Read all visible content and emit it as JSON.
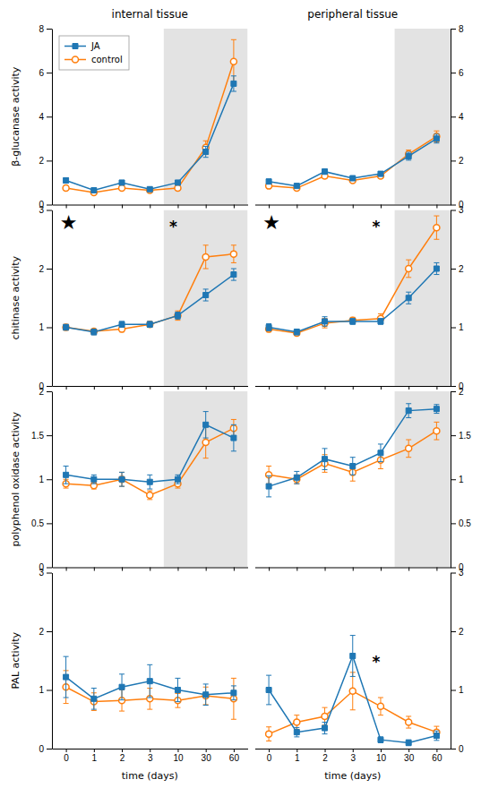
{
  "chart_data": [
    {
      "type": "line",
      "title": "internal tissue",
      "y_label": "β-glucanase activity",
      "categories": [
        "0",
        "1",
        "2",
        "3",
        "10",
        "30",
        "60"
      ],
      "series": [
        {
          "name": "JA",
          "marker": "square",
          "values": [
            1.1,
            0.65,
            1.0,
            0.7,
            1.0,
            2.4,
            5.5
          ],
          "errors": [
            0.12,
            0.08,
            0.1,
            0.06,
            0.1,
            0.25,
            0.35
          ]
        },
        {
          "name": "control",
          "marker": "circle",
          "values": [
            0.75,
            0.55,
            0.75,
            0.65,
            0.75,
            2.6,
            6.5
          ],
          "errors": [
            0.08,
            0.05,
            0.08,
            0.05,
            0.08,
            0.3,
            1.0
          ]
        }
      ],
      "ylim": [
        0,
        8
      ],
      "yticks": [
        0,
        2,
        4,
        6,
        8
      ],
      "shaded_range": {
        "from": "10",
        "to": "60",
        "color": "#c8c8c8"
      },
      "legend": "top-left",
      "tick_labels": "y"
    },
    {
      "type": "line",
      "title": "peripheral tissue",
      "categories": [
        "0",
        "1",
        "2",
        "3",
        "10",
        "30",
        "60"
      ],
      "series": [
        {
          "marker": "square",
          "values": [
            1.05,
            0.85,
            1.5,
            1.2,
            1.4,
            2.2,
            3.0
          ],
          "errors": [
            0.1,
            0.08,
            0.12,
            0.08,
            0.1,
            0.18,
            0.2
          ]
        },
        {
          "marker": "circle",
          "values": [
            0.85,
            0.75,
            1.3,
            1.1,
            1.3,
            2.3,
            3.1
          ],
          "errors": [
            0.08,
            0.05,
            0.1,
            0.08,
            0.1,
            0.18,
            0.25
          ]
        }
      ],
      "ylim": [
        0,
        8
      ],
      "yticks": [
        0,
        2,
        4,
        6,
        8
      ],
      "shaded_range": {
        "from": "30",
        "to": "60",
        "color": "#c8c8c8"
      },
      "tick_labels": "y"
    },
    {
      "type": "line",
      "y_label": "chitinase activity",
      "categories": [
        "0",
        "1",
        "2",
        "3",
        "10",
        "30",
        "60"
      ],
      "series": [
        {
          "marker": "square",
          "values": [
            1.0,
            0.92,
            1.05,
            1.05,
            1.2,
            1.55,
            1.9
          ],
          "errors": [
            0.05,
            0.05,
            0.05,
            0.05,
            0.06,
            0.1,
            0.1
          ]
        },
        {
          "marker": "circle",
          "values": [
            1.0,
            0.93,
            0.97,
            1.05,
            1.2,
            2.2,
            2.25
          ],
          "errors": [
            0.05,
            0.04,
            0.05,
            0.05,
            0.08,
            0.2,
            0.15
          ]
        }
      ],
      "ylim": [
        0,
        3
      ],
      "yticks": [
        0,
        1,
        2,
        3
      ],
      "shaded_range": {
        "from": "10",
        "to": "60",
        "color": "#c8c8c8"
      },
      "tick_labels": "y",
      "annotations": [
        "★",
        "*"
      ]
    },
    {
      "type": "line",
      "categories": [
        "0",
        "1",
        "2",
        "3",
        "10",
        "30",
        "60"
      ],
      "series": [
        {
          "marker": "square",
          "values": [
            1.0,
            0.92,
            1.1,
            1.1,
            1.1,
            1.5,
            2.0
          ],
          "errors": [
            0.06,
            0.05,
            0.08,
            0.05,
            0.05,
            0.1,
            0.1
          ]
        },
        {
          "marker": "circle",
          "values": [
            0.97,
            0.9,
            1.07,
            1.12,
            1.15,
            2.0,
            2.7
          ],
          "errors": [
            0.05,
            0.04,
            0.08,
            0.05,
            0.08,
            0.15,
            0.2
          ]
        }
      ],
      "ylim": [
        0,
        3
      ],
      "yticks": [
        0,
        1,
        2,
        3
      ],
      "shaded_range": {
        "from": "30",
        "to": "60",
        "color": "#c8c8c8"
      },
      "tick_labels": "y",
      "annotations": [
        "★",
        "*"
      ]
    },
    {
      "type": "line",
      "y_label": "polyphenol oxidase activity",
      "categories": [
        "0",
        "1",
        "2",
        "3",
        "10",
        "30",
        "60"
      ],
      "series": [
        {
          "marker": "square",
          "values": [
            1.05,
            1.0,
            1.0,
            0.97,
            1.0,
            1.62,
            1.47
          ],
          "errors": [
            0.1,
            0.05,
            0.08,
            0.08,
            0.05,
            0.15,
            0.15
          ]
        },
        {
          "marker": "circle",
          "values": [
            0.95,
            0.93,
            1.0,
            0.82,
            0.95,
            1.42,
            1.58
          ],
          "errors": [
            0.05,
            0.04,
            0.08,
            0.05,
            0.05,
            0.18,
            0.1
          ]
        }
      ],
      "ylim": [
        0,
        2
      ],
      "yticks": [
        0,
        0.5,
        1,
        1.5,
        2
      ],
      "shaded_range": {
        "from": "10",
        "to": "60",
        "color": "#c8c8c8"
      },
      "tick_labels": "y"
    },
    {
      "type": "line",
      "categories": [
        "0",
        "1",
        "2",
        "3",
        "10",
        "30",
        "60"
      ],
      "series": [
        {
          "marker": "square",
          "values": [
            0.92,
            1.02,
            1.23,
            1.15,
            1.3,
            1.78,
            1.8
          ],
          "errors": [
            0.12,
            0.07,
            0.12,
            0.1,
            0.1,
            0.08,
            0.05
          ]
        },
        {
          "marker": "circle",
          "values": [
            1.05,
            1.0,
            1.18,
            1.08,
            1.22,
            1.35,
            1.55
          ],
          "errors": [
            0.1,
            0.05,
            0.1,
            0.1,
            0.1,
            0.1,
            0.1
          ]
        }
      ],
      "ylim": [
        0,
        2
      ],
      "yticks": [
        0,
        0.5,
        1,
        1.5,
        2
      ],
      "shaded_range": {
        "from": "30",
        "to": "60",
        "color": "#c8c8c8"
      },
      "tick_labels": "y"
    },
    {
      "type": "line",
      "y_label": "PAL activity",
      "x_label": "time (days)",
      "categories": [
        "0",
        "1",
        "2",
        "3",
        "10",
        "30",
        "60"
      ],
      "series": [
        {
          "marker": "square",
          "values": [
            1.22,
            0.85,
            1.05,
            1.15,
            1.0,
            0.92,
            0.95
          ],
          "errors": [
            0.35,
            0.18,
            0.22,
            0.28,
            0.2,
            0.18,
            0.12
          ]
        },
        {
          "marker": "circle",
          "values": [
            1.05,
            0.8,
            0.82,
            0.85,
            0.82,
            0.9,
            0.85
          ],
          "errors": [
            0.28,
            0.15,
            0.18,
            0.18,
            0.12,
            0.15,
            0.35
          ]
        }
      ],
      "ylim": [
        0,
        3
      ],
      "yticks": [
        0,
        1,
        2,
        3
      ]
    },
    {
      "type": "line",
      "x_label": "time (days)",
      "categories": [
        "0",
        "1",
        "2",
        "3",
        "10",
        "30",
        "60"
      ],
      "series": [
        {
          "marker": "square",
          "values": [
            1.0,
            0.28,
            0.35,
            1.58,
            0.15,
            0.1,
            0.22
          ],
          "errors": [
            0.25,
            0.08,
            0.1,
            0.35,
            0.05,
            0.05,
            0.08
          ]
        },
        {
          "marker": "circle",
          "values": [
            0.25,
            0.45,
            0.55,
            0.98,
            0.72,
            0.45,
            0.28
          ],
          "errors": [
            0.12,
            0.12,
            0.15,
            0.32,
            0.15,
            0.1,
            0.1
          ]
        }
      ],
      "ylim": [
        0,
        3
      ],
      "yticks": [
        0,
        1,
        2,
        3
      ],
      "annotations": [
        "*"
      ]
    }
  ]
}
